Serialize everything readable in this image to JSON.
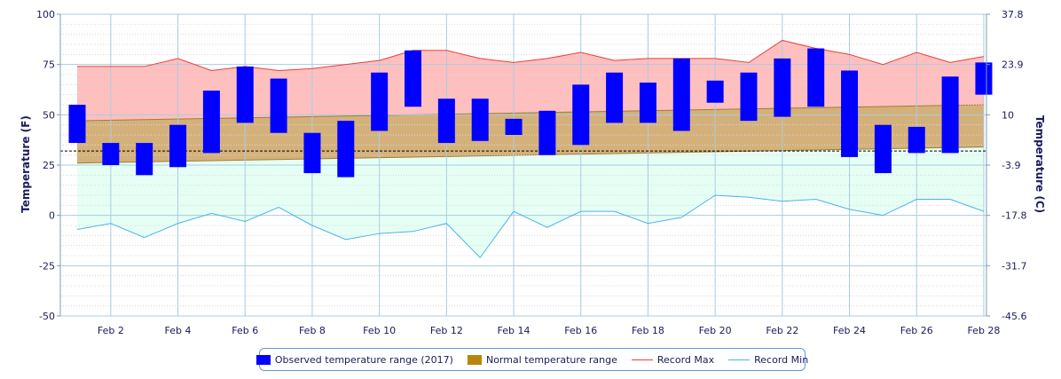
{
  "chart_data": {
    "type": "bar",
    "ylabel_left": "Temperature (F)",
    "ylabel_right": "Temperature (C)",
    "ylim": [
      -50,
      100
    ],
    "yticks_left": [
      -50,
      -25,
      0,
      25,
      50,
      75,
      100
    ],
    "yticks_right": [
      "-45.6",
      "-31.7",
      "-17.8",
      "-3.9",
      "10",
      "23.9",
      "37.8"
    ],
    "freezing_line": 32,
    "days": [
      1,
      2,
      3,
      4,
      5,
      6,
      7,
      8,
      9,
      10,
      11,
      12,
      13,
      14,
      15,
      16,
      17,
      18,
      19,
      20,
      21,
      22,
      23,
      24,
      25,
      26,
      27,
      28
    ],
    "xtick_labels": [
      "Feb 2",
      "Feb 4",
      "Feb 6",
      "Feb 8",
      "Feb 10",
      "Feb 12",
      "Feb 14",
      "Feb 16",
      "Feb 18",
      "Feb 20",
      "Feb 22",
      "Feb 24",
      "Feb 26",
      "Feb 28"
    ],
    "xtick_days": [
      2,
      4,
      6,
      8,
      10,
      12,
      14,
      16,
      18,
      20,
      22,
      24,
      26,
      28
    ],
    "series": [
      {
        "name": "Observed temperature range (2017)",
        "color": "#0000ff",
        "low": [
          36,
          25,
          20,
          24,
          31,
          46,
          41,
          21,
          19,
          42,
          54,
          36,
          37,
          40,
          30,
          35,
          46,
          46,
          42,
          56,
          47,
          49,
          54,
          29,
          21,
          31,
          31,
          60
        ],
        "high": [
          55,
          36,
          36,
          45,
          62,
          74,
          68,
          41,
          47,
          71,
          82,
          58,
          58,
          48,
          52,
          65,
          71,
          66,
          78,
          67,
          71,
          78,
          83,
          72,
          45,
          44,
          69,
          76
        ]
      },
      {
        "name": "Normal temperature range",
        "color": "#b8860b",
        "low": [
          26,
          34
        ],
        "high": [
          47,
          55
        ]
      },
      {
        "name": "Record Max",
        "color": "#e8403c",
        "values": [
          74,
          74,
          74,
          78,
          72,
          74,
          72,
          73,
          75,
          77,
          82,
          82,
          78,
          76,
          78,
          81,
          77,
          78,
          78,
          78,
          76,
          87,
          83,
          80,
          75,
          81,
          76,
          79
        ]
      },
      {
        "name": "Record Min",
        "color": "#4ab3e8",
        "values": [
          -7,
          -4,
          -11,
          -4,
          1,
          -3,
          4,
          -5,
          -12,
          -9,
          -8,
          -4,
          -21,
          2,
          -6,
          2,
          2,
          -4,
          -1,
          10,
          9,
          7,
          8,
          3,
          0,
          8,
          8,
          2
        ]
      }
    ]
  },
  "legend": {
    "observed": "Observed temperature range (2017)",
    "normal": "Normal temperature range",
    "record_max": "Record Max",
    "record_min": "Record Min"
  },
  "colors": {
    "observed": "#0000ff",
    "normal": "#b8860b",
    "record_max": "#e8403c",
    "record_min": "#4ab3e8",
    "record_max_fill": "#ffb8b8",
    "normal_fill": "#d4b17a",
    "record_min_fill": "#e6fff5"
  }
}
